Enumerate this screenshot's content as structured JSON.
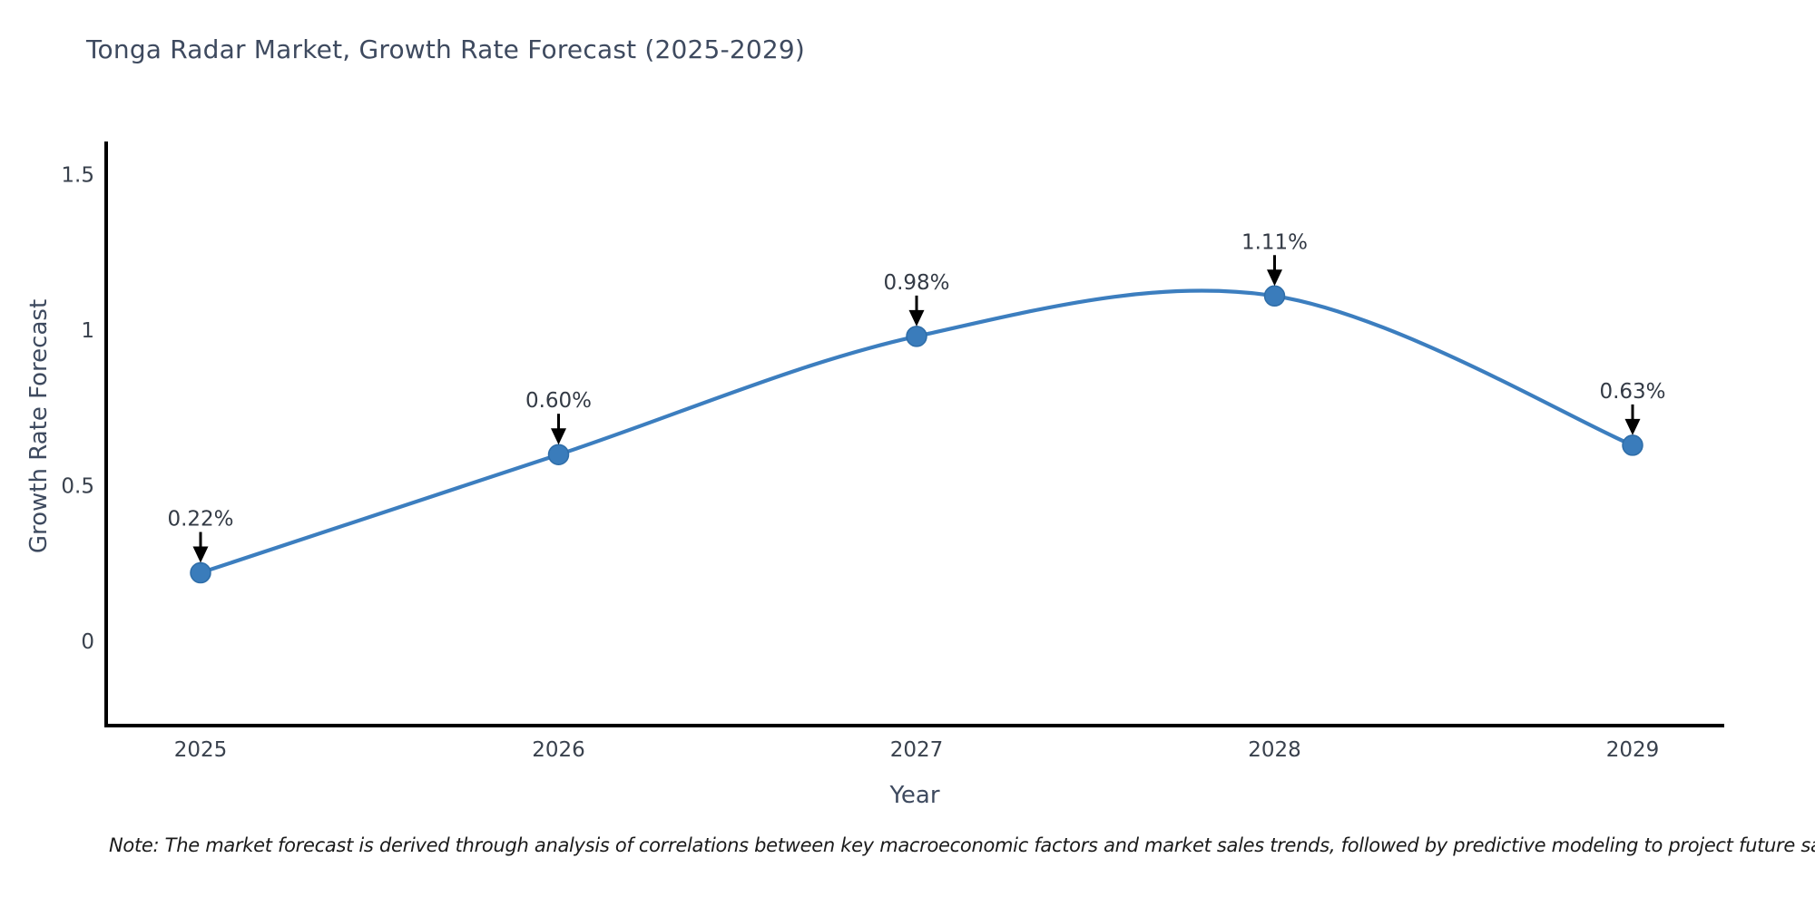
{
  "title": "Tonga Radar Market, Growth Rate Forecast (2025-2029)",
  "note": "Note: The market forecast is derived through analysis of correlations between key macroeconomic factors and market sales trends, followed by predictive modeling to project future sales",
  "chart_data": {
    "type": "line",
    "title": "Tonga Radar Market, Growth Rate Forecast (2025-2029)",
    "xlabel": "Year",
    "ylabel": "Growth Rate Forecast",
    "x": [
      "2025",
      "2026",
      "2027",
      "2028",
      "2029"
    ],
    "series": [
      {
        "name": "Growth Rate Forecast",
        "values": [
          0.22,
          0.6,
          0.98,
          1.11,
          0.63
        ]
      }
    ],
    "point_labels": [
      "0.22%",
      "0.60%",
      "0.98%",
      "1.11%",
      "0.63%"
    ],
    "yticks": {
      "values": [
        0,
        0.5,
        1,
        1.5
      ],
      "labels": [
        "0",
        "0.5",
        "1",
        "1.5"
      ]
    },
    "ylim": [
      -0.27,
      1.62
    ],
    "grid": false,
    "legend": "none",
    "smooth_spline": true,
    "annotation_arrows": true,
    "colors": {
      "line": "#3c7ebf",
      "line_halo": "#ffffff",
      "marker": "#3a7cbb",
      "marker_edge": "#2e6da8",
      "axis": "#000000",
      "arrow": "#000000",
      "title_text": "#3e4a5f",
      "tick_text": "#39414d",
      "annotation_text": "#333a45",
      "note_text": "#1a1a1a",
      "background": "#ffffff"
    }
  }
}
